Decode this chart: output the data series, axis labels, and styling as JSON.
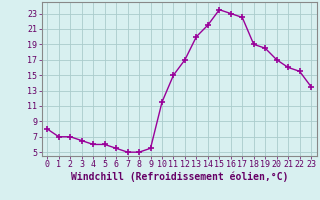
{
  "x": [
    0,
    1,
    2,
    3,
    4,
    5,
    6,
    7,
    8,
    9,
    10,
    11,
    12,
    13,
    14,
    15,
    16,
    17,
    18,
    19,
    20,
    21,
    22,
    23
  ],
  "y": [
    8.0,
    7.0,
    7.0,
    6.5,
    6.0,
    6.0,
    5.5,
    5.0,
    5.0,
    5.5,
    11.5,
    15.0,
    17.0,
    20.0,
    21.5,
    23.5,
    23.0,
    22.5,
    19.0,
    18.5,
    17.0,
    16.0,
    15.5,
    13.5
  ],
  "line_color": "#990099",
  "marker": "+",
  "markersize": 4,
  "linewidth": 1.0,
  "bg_color": "#d8f0f0",
  "grid_color": "#aacccc",
  "xlabel": "Windchill (Refroidissement éolien,°C)",
  "xlabel_fontsize": 7,
  "yticks": [
    5,
    7,
    9,
    11,
    13,
    15,
    17,
    19,
    21,
    23
  ],
  "xticks": [
    0,
    1,
    2,
    3,
    4,
    5,
    6,
    7,
    8,
    9,
    10,
    11,
    12,
    13,
    14,
    15,
    16,
    17,
    18,
    19,
    20,
    21,
    22,
    23
  ],
  "ylim": [
    4.5,
    24.5
  ],
  "xlim": [
    -0.5,
    23.5
  ],
  "tick_fontsize": 6,
  "tick_color": "#660066",
  "label_color": "#660066"
}
